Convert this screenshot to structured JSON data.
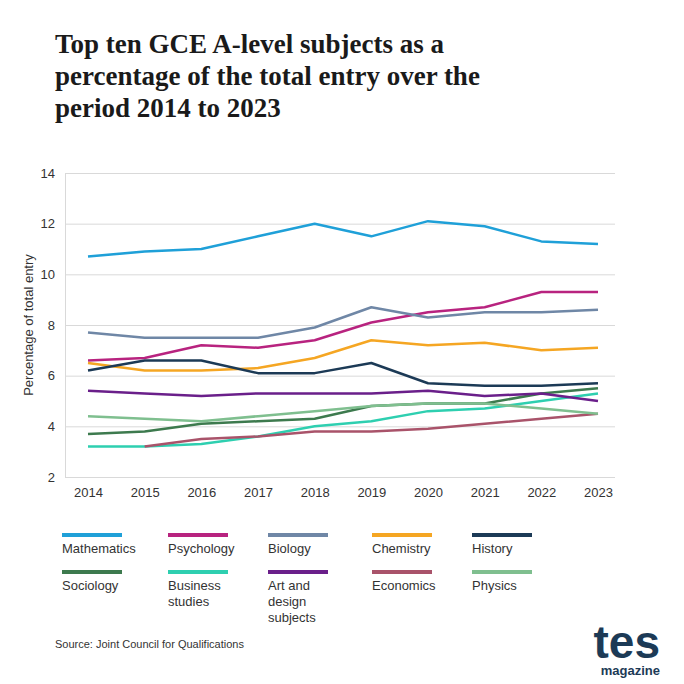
{
  "chart_data": {
    "type": "line",
    "title": "Top ten GCE A-level subjects as a percentage of the total entry over the period 2014 to 2023",
    "y_label": "Percentage of total entry",
    "source": "Source: Joint Council for Qualifications",
    "logo": "tes",
    "logo_tagline": "magazine",
    "categories": [
      "2014",
      "2015",
      "2016",
      "2017",
      "2018",
      "2019",
      "2020",
      "2021",
      "2022",
      "2023"
    ],
    "ylim": [
      2,
      14
    ],
    "yticks": [
      2,
      4,
      6,
      8,
      10,
      12,
      14
    ],
    "grid": true,
    "legend": "bottom",
    "series": [
      {
        "name": "Mathematics",
        "color": "#1fa0d8",
        "values": [
          10.7,
          10.9,
          11.0,
          11.5,
          12.0,
          11.5,
          12.1,
          11.9,
          11.3,
          11.2
        ]
      },
      {
        "name": "Psychology",
        "color": "#b8237f",
        "values": [
          6.6,
          6.7,
          7.2,
          7.1,
          7.4,
          8.1,
          8.5,
          8.7,
          9.3,
          9.3
        ]
      },
      {
        "name": "Biology",
        "color": "#6f87a6",
        "values": [
          7.7,
          7.5,
          7.5,
          7.5,
          7.9,
          8.7,
          8.3,
          8.5,
          8.5,
          8.6
        ]
      },
      {
        "name": "Chemistry",
        "color": "#f5a623",
        "values": [
          6.5,
          6.2,
          6.2,
          6.3,
          6.7,
          7.4,
          7.2,
          7.3,
          7.0,
          7.1
        ]
      },
      {
        "name": "History",
        "color": "#1c3a56",
        "values": [
          6.2,
          6.6,
          6.6,
          6.1,
          6.1,
          6.5,
          5.7,
          5.6,
          5.6,
          5.7
        ]
      },
      {
        "name": "Sociology",
        "color": "#3d7a4e",
        "values": [
          3.7,
          3.8,
          4.1,
          4.2,
          4.3,
          4.8,
          4.9,
          4.9,
          5.3,
          5.5
        ]
      },
      {
        "name": "Business studies",
        "color": "#2ecfb0",
        "values": [
          3.2,
          3.2,
          3.3,
          3.6,
          4.0,
          4.2,
          4.6,
          4.7,
          5.0,
          5.3
        ]
      },
      {
        "name": "Art and design subjects",
        "color": "#6a1f8a",
        "values": [
          5.4,
          5.3,
          5.2,
          5.3,
          5.3,
          5.3,
          5.4,
          5.2,
          5.3,
          5.0
        ]
      },
      {
        "name": "Economics",
        "color": "#a9536a",
        "values": [
          null,
          3.2,
          3.5,
          3.6,
          3.8,
          3.8,
          3.9,
          4.1,
          4.3,
          4.5
        ]
      },
      {
        "name": "Physics",
        "color": "#7fbf8f",
        "values": [
          4.4,
          4.3,
          4.2,
          4.4,
          4.6,
          4.8,
          4.9,
          4.9,
          4.7,
          4.5
        ]
      }
    ]
  }
}
